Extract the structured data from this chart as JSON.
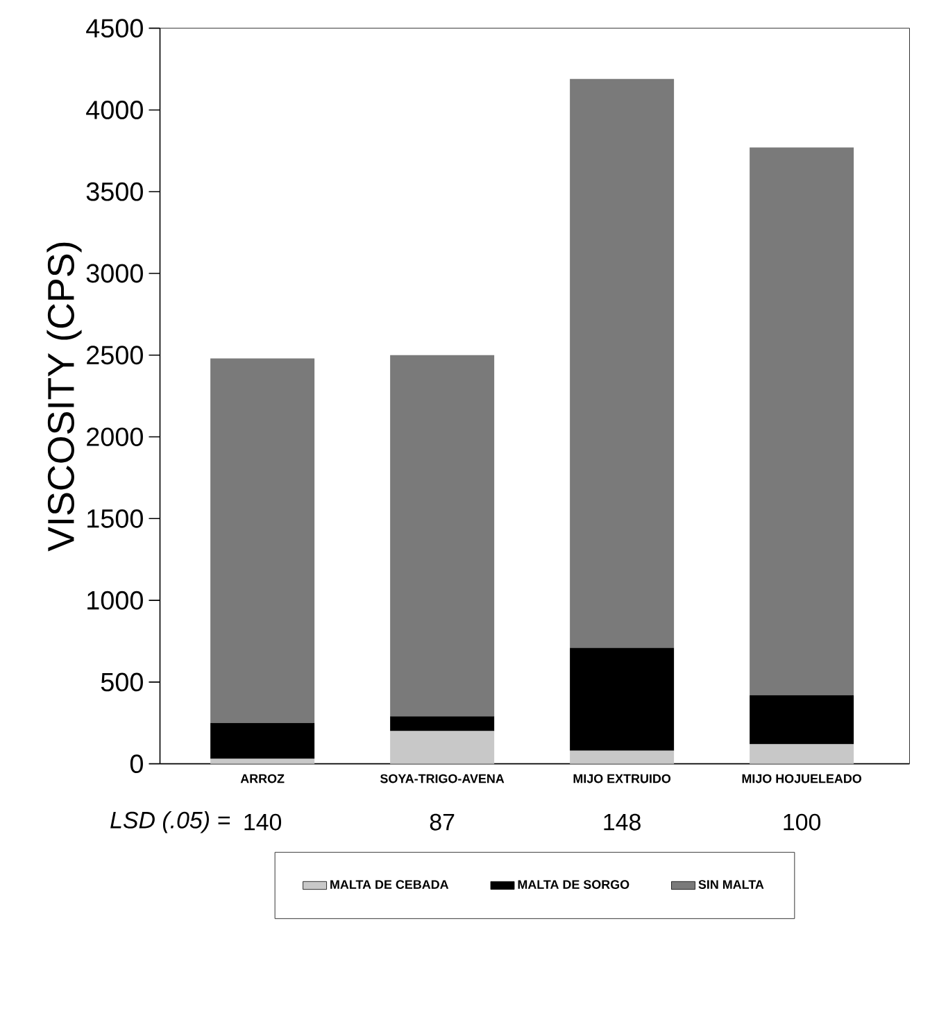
{
  "chart_data": {
    "type": "bar",
    "stacked": true,
    "ylabel": "VISCOSITY (CPS)",
    "categories": [
      "ARROZ",
      "SOYA-TRIGO-AVENA",
      "MIJO EXTRUIDO",
      "MIJO HOJUELEADO"
    ],
    "series": [
      {
        "name": "MALTA DE CEBADA",
        "color": "#c8c8c8",
        "values": [
          30,
          200,
          80,
          120
        ]
      },
      {
        "name": "MALTA DE SORGO",
        "color": "#000000",
        "values": [
          220,
          90,
          630,
          300
        ]
      },
      {
        "name": "SIN MALTA",
        "color": "#7a7a7a",
        "values": [
          2230,
          2210,
          3480,
          3350
        ]
      }
    ],
    "ylim": [
      0,
      4500
    ],
    "yticks": [
      0,
      500,
      1000,
      1500,
      2000,
      2500,
      3000,
      3500,
      4000,
      4500
    ],
    "legend": "bottom",
    "annotations": [
      "LSD (.05) =",
      "140",
      "87",
      "148",
      "100"
    ]
  }
}
